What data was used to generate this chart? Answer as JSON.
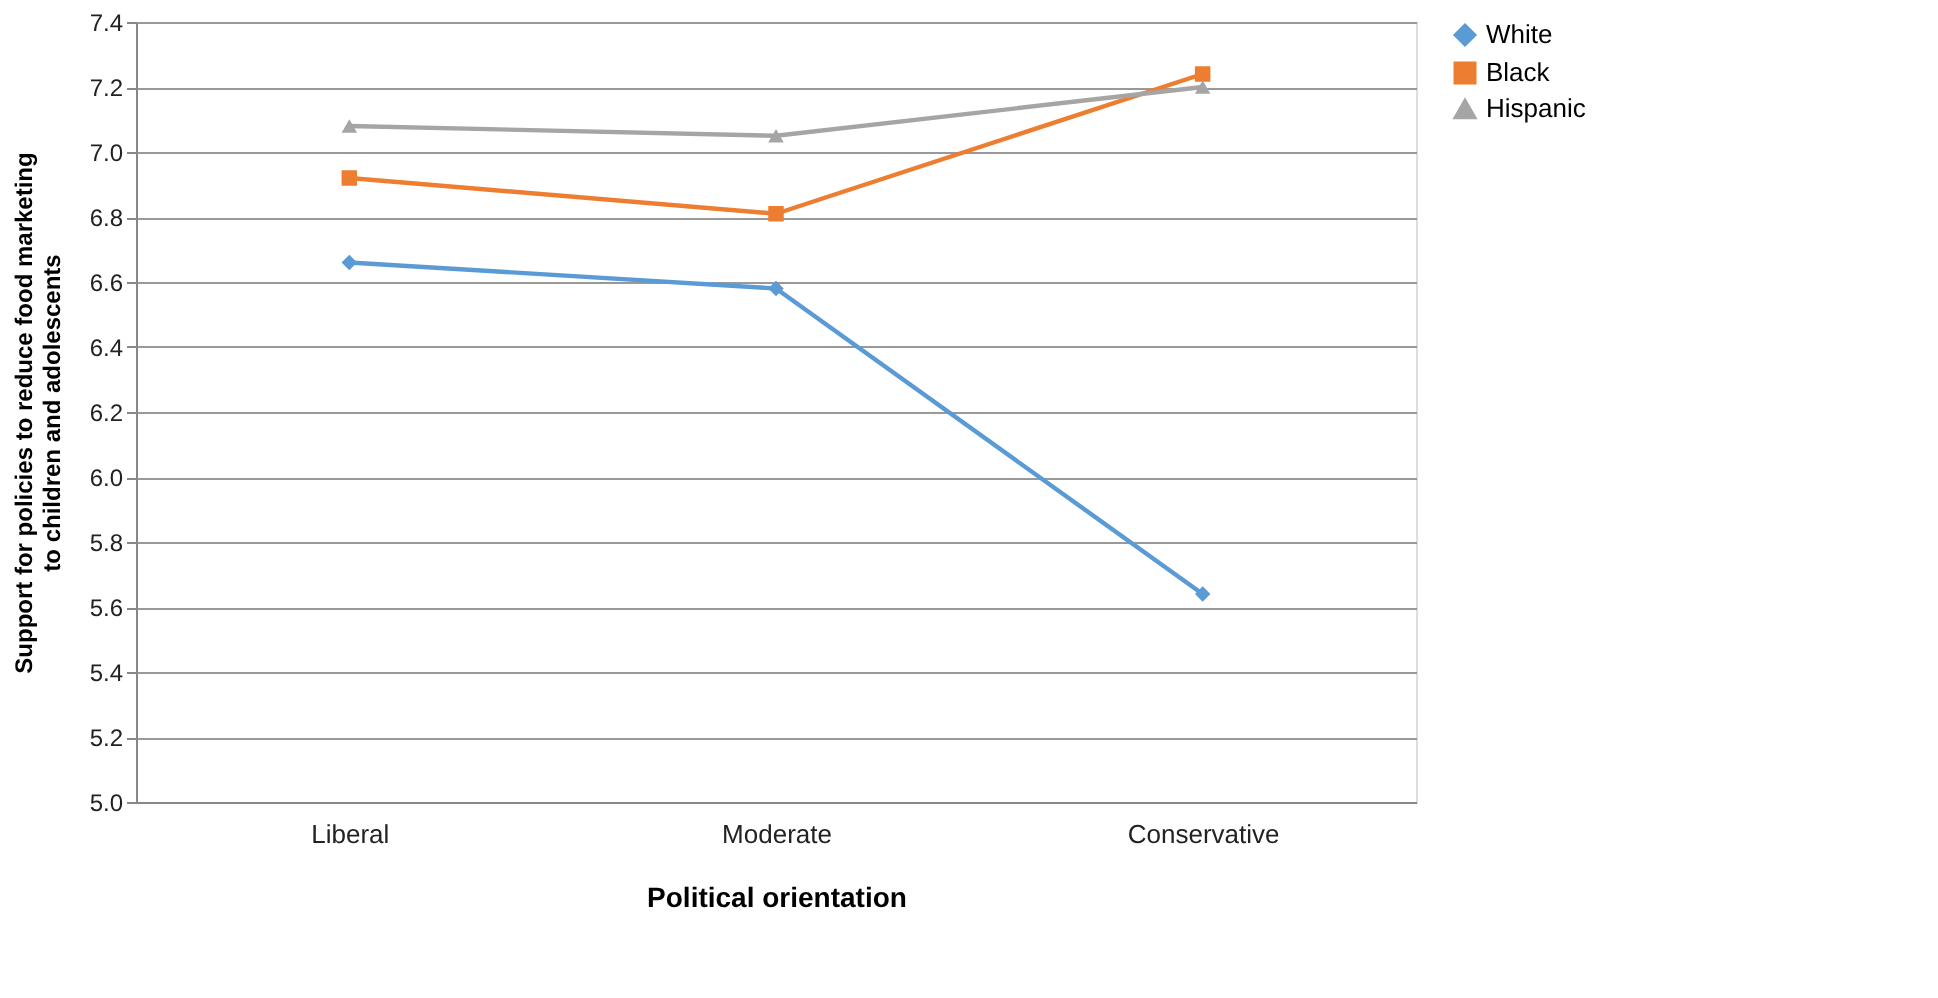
{
  "chart_data": {
    "type": "line",
    "xlabel": "Political orientation",
    "ylabel": "Support for policies to reduce food marketing\nto children and adolescents",
    "categories": [
      "Liberal",
      "Moderate",
      "Conservative"
    ],
    "series": [
      {
        "name": "White",
        "color": "#5b9bd5",
        "marker": "diamond",
        "values": [
          6.66,
          6.58,
          5.64
        ]
      },
      {
        "name": "Black",
        "color": "#ed7d31",
        "marker": "square",
        "values": [
          6.92,
          6.81,
          7.24
        ]
      },
      {
        "name": "Hispanic",
        "color": "#a5a5a5",
        "marker": "triangle",
        "values": [
          7.08,
          7.05,
          7.2
        ]
      }
    ],
    "ylim": [
      5.0,
      7.4
    ],
    "yticks": [
      {
        "value": 5.0,
        "label": "5.0"
      },
      {
        "value": 5.2,
        "label": "5.2"
      },
      {
        "value": 5.4,
        "label": "5.4"
      },
      {
        "value": 5.6,
        "label": "5.6"
      },
      {
        "value": 5.8,
        "label": "5.8"
      },
      {
        "value": 6.0,
        "label": "6.0"
      },
      {
        "value": 6.2,
        "label": "6.2"
      },
      {
        "value": 6.4,
        "label": "6.4"
      },
      {
        "value": 6.6,
        "label": "6.6"
      },
      {
        "value": 6.8,
        "label": "6.8"
      },
      {
        "value": 7.0,
        "label": "7.0"
      },
      {
        "value": 7.2,
        "label": "7.2"
      },
      {
        "value": 7.4,
        "label": "7.4"
      }
    ],
    "grid": "y",
    "legend": "right",
    "line_style": "solid"
  }
}
